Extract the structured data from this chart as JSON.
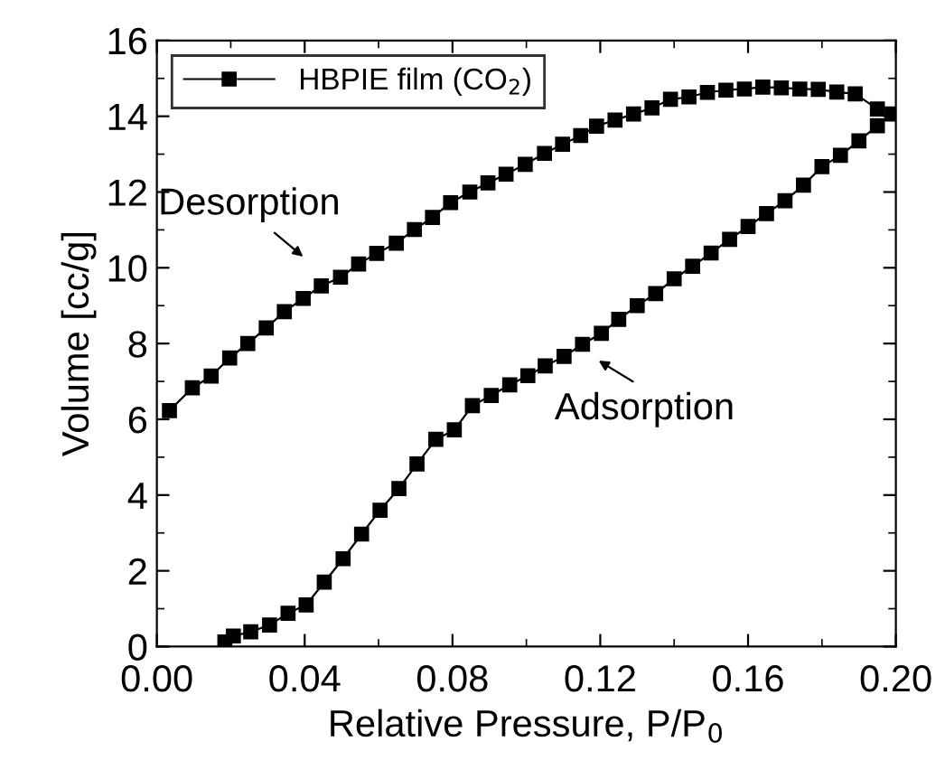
{
  "chart_data": {
    "type": "line",
    "xlabel": "Relative Pressure, P/P$_{0}$",
    "ylabel": "Volume [cc/g]",
    "x": [
      0.0184,
      0.0207,
      0.0254,
      0.0305,
      0.0355,
      0.0404,
      0.0453,
      0.0504,
      0.0554,
      0.0604,
      0.0655,
      0.0704,
      0.0755,
      0.0805,
      0.0854,
      0.0905,
      0.0955,
      0.1004,
      0.1051,
      0.1102,
      0.1152,
      0.1203,
      0.125,
      0.13,
      0.135,
      0.14,
      0.145,
      0.15,
      0.155,
      0.16,
      0.165,
      0.17,
      0.175,
      0.18,
      0.185,
      0.19,
      0.195,
      0.199,
      0.195,
      0.189,
      0.184,
      0.179,
      0.174,
      0.169,
      0.164,
      0.159,
      0.154,
      0.149,
      0.144,
      0.139,
      0.134,
      0.129,
      0.124,
      0.119,
      0.1147,
      0.1098,
      0.1049,
      0.0997,
      0.0945,
      0.0896,
      0.0847,
      0.0795,
      0.0746,
      0.0697,
      0.0648,
      0.0595,
      0.0546,
      0.0497,
      0.0445,
      0.0396,
      0.0345,
      0.0296,
      0.0246,
      0.0197,
      0.0147,
      0.0096,
      0.0034
    ],
    "series": [
      {
        "name": "HBPIE film (CO$_{2}$)",
        "color": "#000000",
        "values": [
          0.12,
          0.28,
          0.39,
          0.57,
          0.88,
          1.1,
          1.7,
          2.32,
          2.97,
          3.6,
          4.17,
          4.82,
          5.47,
          5.72,
          6.36,
          6.63,
          6.91,
          7.15,
          7.41,
          7.66,
          7.98,
          8.27,
          8.64,
          9.0,
          9.32,
          9.71,
          10.04,
          10.39,
          10.75,
          11.09,
          11.43,
          11.77,
          12.18,
          12.67,
          12.97,
          13.35,
          13.75,
          14.06,
          14.19,
          14.59,
          14.64,
          14.71,
          14.72,
          14.75,
          14.77,
          14.72,
          14.69,
          14.63,
          14.51,
          14.45,
          14.22,
          14.06,
          13.9,
          13.74,
          13.49,
          13.26,
          13.02,
          12.73,
          12.47,
          12.24,
          12.0,
          11.72,
          11.33,
          11.01,
          10.65,
          10.38,
          10.1,
          9.75,
          9.52,
          9.19,
          8.84,
          8.41,
          8.0,
          7.62,
          7.14,
          6.83,
          6.23
        ]
      }
    ],
    "xlim": [
      0.0,
      0.2
    ],
    "ylim": [
      0,
      16
    ],
    "xticks": [
      {
        "value": 0.0,
        "label": "0.00"
      },
      {
        "value": 0.04,
        "label": "0.04"
      },
      {
        "value": 0.08,
        "label": "0.08"
      },
      {
        "value": 0.12,
        "label": "0.12"
      },
      {
        "value": 0.16,
        "label": "0.16"
      },
      {
        "value": 0.2,
        "label": "0.20"
      }
    ],
    "yticks": [
      0,
      2,
      4,
      6,
      8,
      10,
      12,
      14,
      16
    ],
    "annotations": [
      "Desorption",
      "Adsorption"
    ],
    "legend": "top left",
    "marker": "square",
    "line_style": "solid",
    "grid": false
  }
}
